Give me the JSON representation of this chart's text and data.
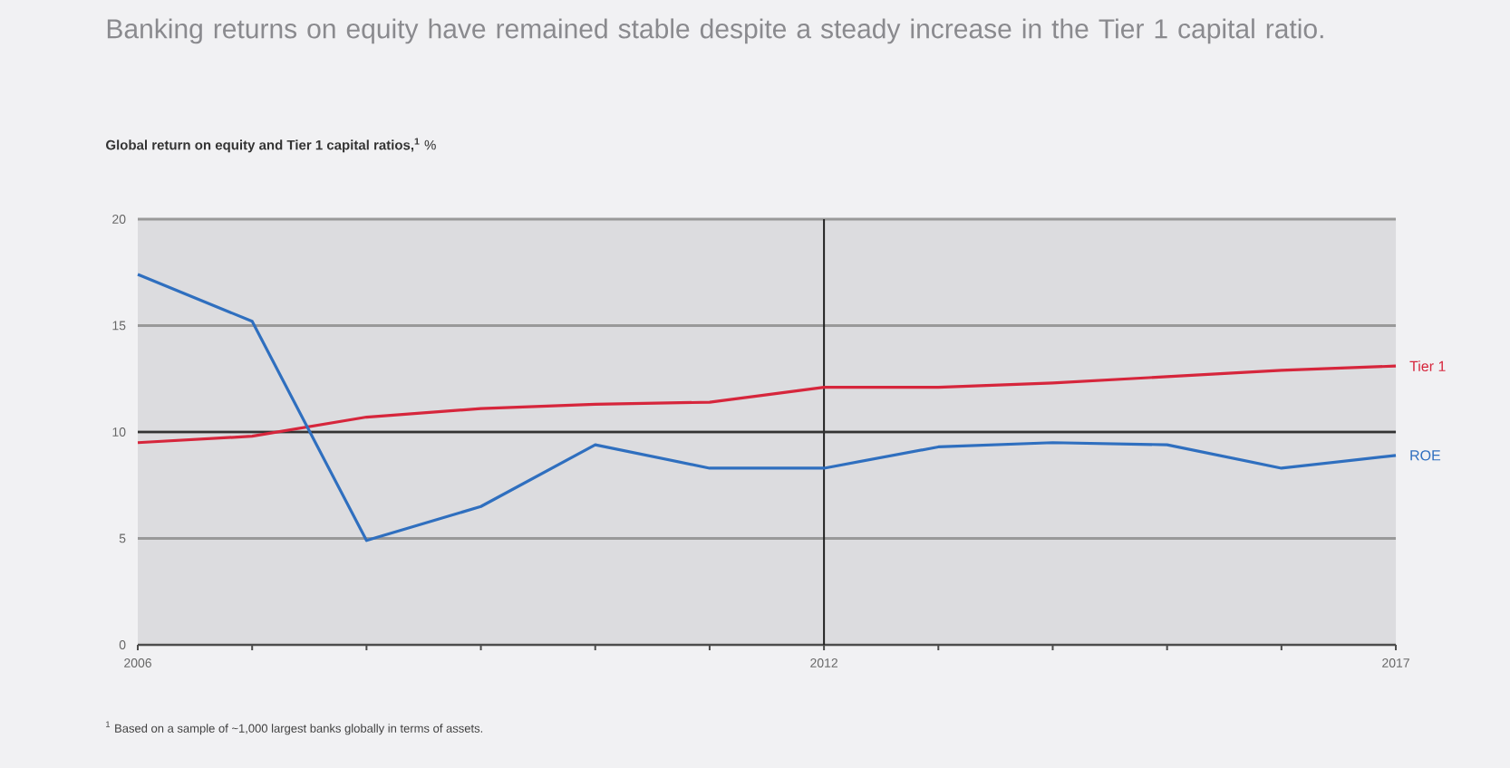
{
  "chart_data": {
    "type": "line",
    "title": "Banking returns on equity have remained stable despite a steady increase in the Tier 1 capital ratio.",
    "subtitle": "**Global return on equity and Tier 1 capital ratios,$^{1}$** %",
    "annotations": [
      "$^{1}$ Based on a sample of ~1,000 largest banks globally in terms of assets."
    ],
    "x": [
      2006,
      2007,
      2008,
      2009,
      2010,
      2011,
      2012,
      2013,
      2014,
      2015,
      2016,
      2017
    ],
    "series": [
      {
        "name": "Tier 1",
        "color": "#d6263c",
        "values": [
          9.5,
          9.8,
          10.7,
          11.1,
          11.3,
          11.4,
          12.1,
          12.1,
          12.3,
          12.6,
          12.9,
          13.1
        ]
      },
      {
        "name": "ROE",
        "color": "#2f6fbf",
        "values": [
          17.4,
          15.2,
          4.9,
          6.5,
          9.4,
          8.3,
          8.3,
          9.3,
          9.5,
          9.4,
          8.3,
          8.9
        ]
      }
    ],
    "xlim": [
      2006,
      2017
    ],
    "xticks": [
      2006,
      {
        "value": 2007,
        "label": null
      },
      {
        "value": 2008,
        "label": null
      },
      {
        "value": 2009,
        "label": null
      },
      {
        "value": 2010,
        "label": null
      },
      {
        "value": 2011,
        "label": null
      },
      2012,
      {
        "value": 2013,
        "label": null
      },
      {
        "value": 2014,
        "label": null
      },
      {
        "value": 2015,
        "label": null
      },
      {
        "value": 2016,
        "label": null
      },
      2017
    ],
    "ylim": [
      0,
      20
    ],
    "yticks": [
      0,
      5,
      10,
      15,
      20
    ],
    "grid": "y",
    "legend": false,
    "marker": "none",
    "line_style": "solid",
    "ref_lines": [
      {
        "axis": "x",
        "value": 2012,
        "color": "#222222"
      },
      {
        "axis": "y",
        "value": 10,
        "color": "#333333"
      }
    ]
  }
}
